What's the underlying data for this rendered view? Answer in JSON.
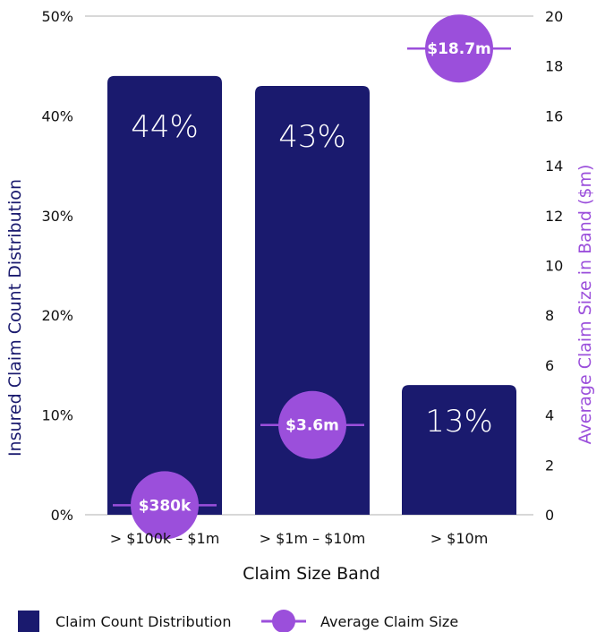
{
  "chart_data": {
    "type": "bar",
    "categories": [
      "> $100k – $1m",
      "> $1m – $10m",
      "> $10m"
    ],
    "series": [
      {
        "name": "Claim Count Distribution",
        "axis": "left",
        "values": [
          44,
          43,
          13
        ],
        "labels": [
          "44%",
          "43%",
          "13%"
        ]
      },
      {
        "name": "Average Claim Size",
        "axis": "right",
        "values": [
          0.38,
          3.6,
          18.7
        ],
        "labels": [
          "$380k",
          "$3.6m",
          "$18.7m"
        ]
      }
    ],
    "xlabel": "Claim Size Band",
    "ylabel": "Insured Claim Count Distribution",
    "y2label": "Average Claim Size in Band ($m)",
    "ylim": [
      0,
      50
    ],
    "y2lim": [
      0,
      20
    ],
    "yticks": [
      "0%",
      "10%",
      "20%",
      "30%",
      "40%",
      "50%"
    ],
    "y2ticks": [
      "0",
      "2",
      "4",
      "6",
      "8",
      "10",
      "12",
      "14",
      "16",
      "18",
      "20"
    ],
    "legend_position": "bottom",
    "colors": {
      "bar": "#1a1a6e",
      "dot": "#9b4fdb"
    }
  }
}
